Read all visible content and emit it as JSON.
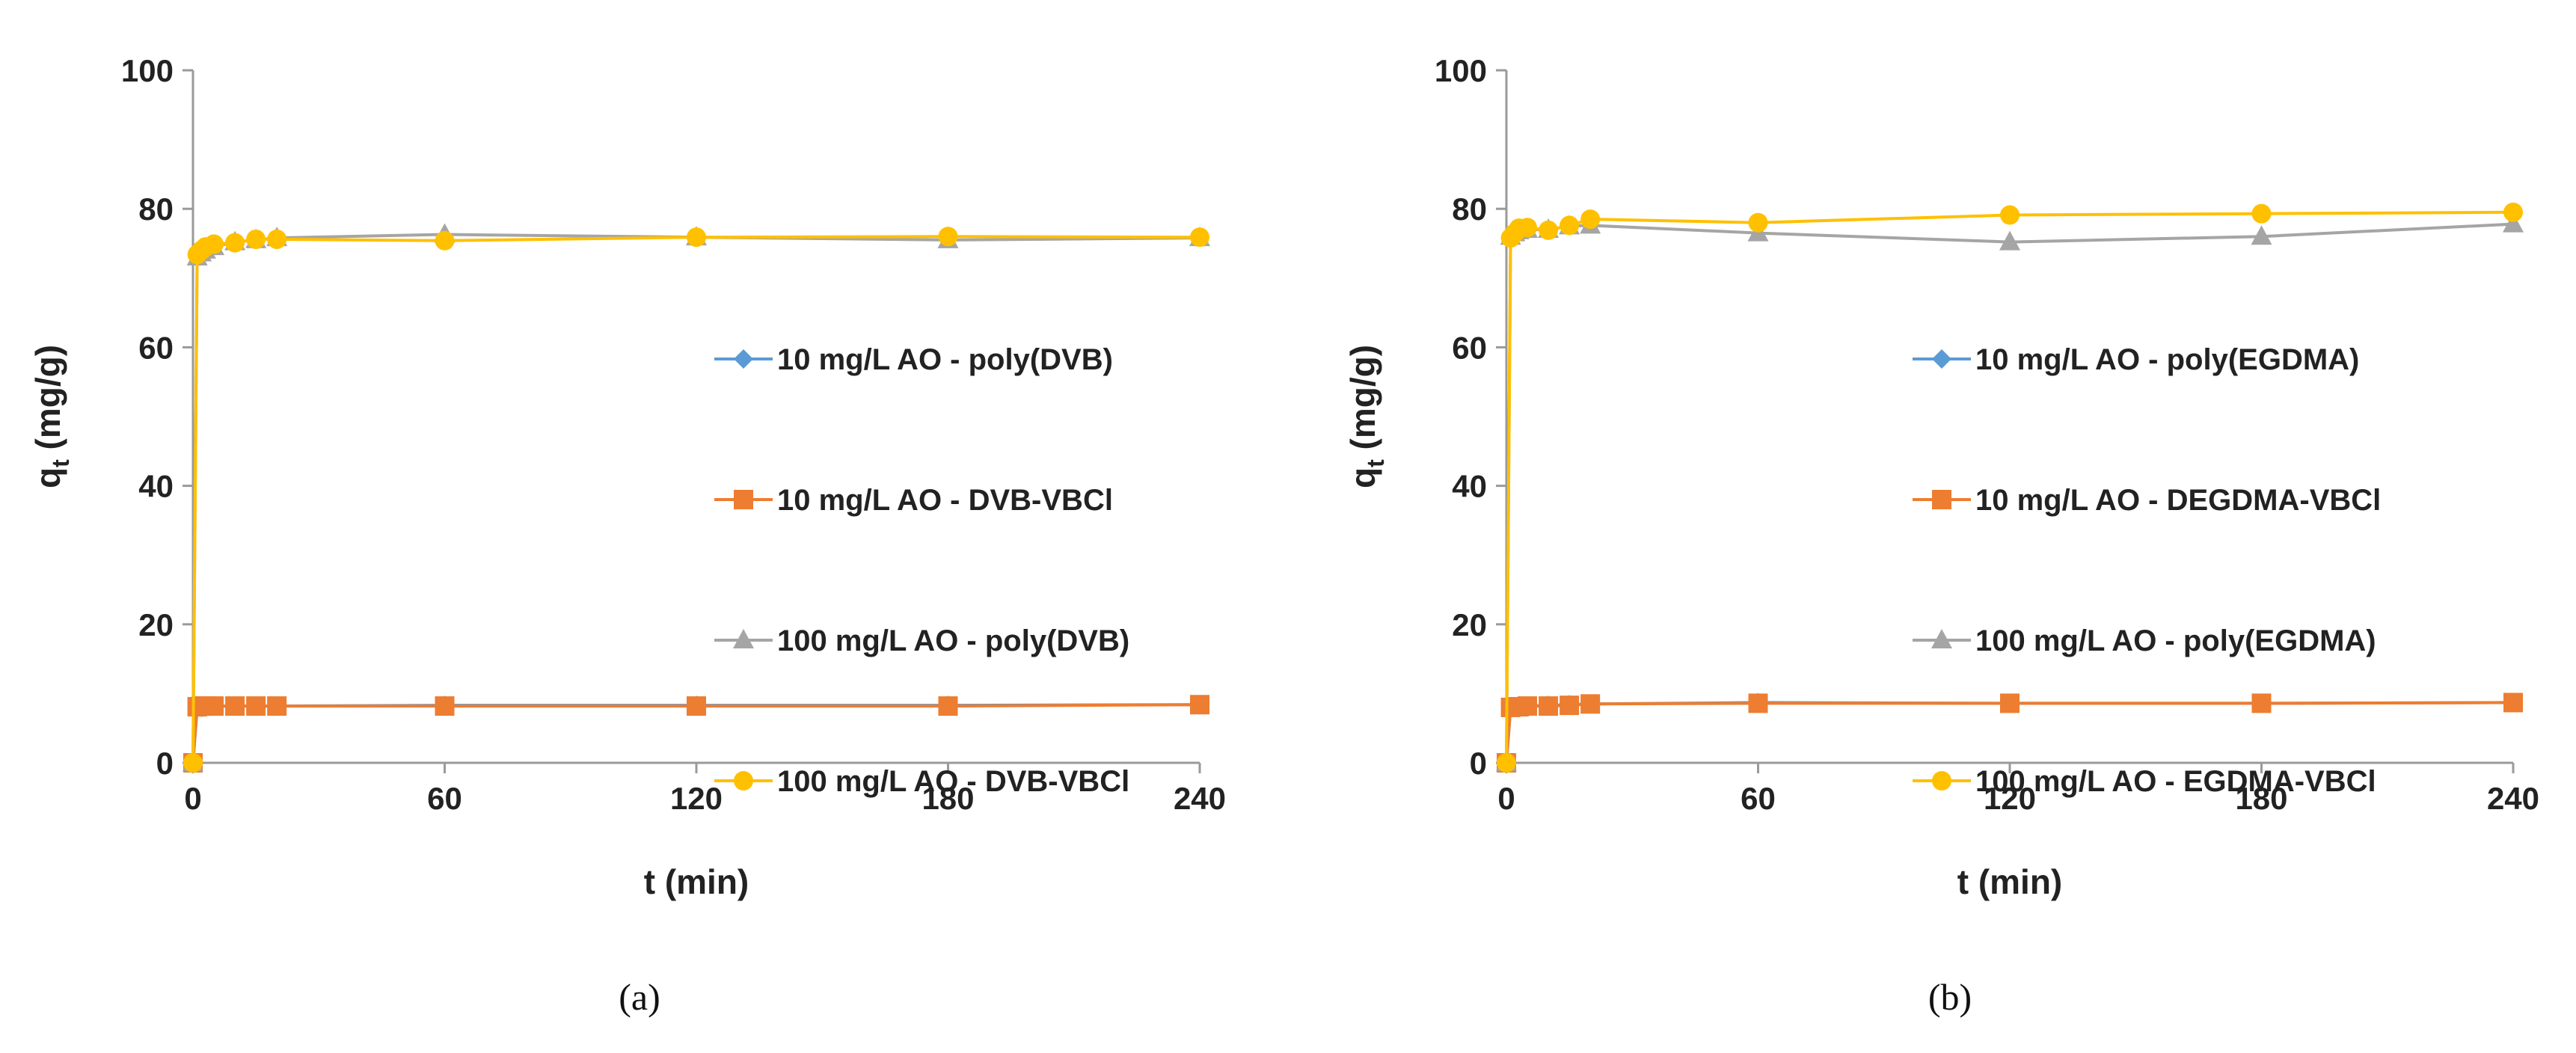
{
  "chart_data": [
    {
      "type": "line",
      "panel_label": "(a)",
      "xlabel": "t (min)",
      "ylabel_main": "q",
      "ylabel_sub": "t",
      "ylabel_unit": " (mg/g)",
      "xlim": [
        0,
        240
      ],
      "ylim": [
        0,
        100
      ],
      "xticks": [
        0,
        60,
        120,
        180,
        240
      ],
      "yticks": [
        0,
        20,
        40,
        60,
        80,
        100
      ],
      "grid": false,
      "legend_position": "center-right",
      "series": [
        {
          "name": "10 mg/L AO - poly(DVB)",
          "color": "#5b9bd5",
          "marker": "diamond",
          "x": [
            0,
            1,
            2,
            3,
            5,
            10,
            15,
            20,
            60,
            120,
            180,
            240
          ],
          "y": [
            0,
            7.9,
            8.0,
            8.1,
            8.2,
            8.2,
            8.2,
            8.2,
            8.3,
            8.3,
            8.3,
            8.4
          ]
        },
        {
          "name": "10 mg/L AO - DVB-VBCl",
          "color": "#ed7d31",
          "marker": "square",
          "x": [
            0,
            1,
            2,
            3,
            5,
            10,
            15,
            20,
            60,
            120,
            180,
            240
          ],
          "y": [
            0,
            8.1,
            8.2,
            8.2,
            8.2,
            8.2,
            8.2,
            8.2,
            8.2,
            8.2,
            8.2,
            8.4
          ]
        },
        {
          "name": "100 mg/L AO - poly(DVB)",
          "color": "#a5a5a5",
          "marker": "triangle",
          "x": [
            0,
            1,
            2,
            3,
            5,
            10,
            15,
            20,
            60,
            120,
            180,
            240
          ],
          "y": [
            0,
            73.0,
            73.6,
            74.0,
            74.5,
            75.2,
            75.5,
            75.8,
            76.3,
            75.9,
            75.5,
            75.8
          ]
        },
        {
          "name": "100 mg/L AO - DVB-VBCl",
          "color": "#ffc000",
          "marker": "circle",
          "x": [
            0,
            1,
            2,
            3,
            5,
            10,
            15,
            20,
            60,
            120,
            180,
            240
          ],
          "y": [
            0,
            73.4,
            74.0,
            74.5,
            74.9,
            75.1,
            75.6,
            75.6,
            75.4,
            75.9,
            76.0,
            75.9
          ]
        }
      ]
    },
    {
      "type": "line",
      "panel_label": "(b)",
      "xlabel": "t (min)",
      "ylabel_main": "q",
      "ylabel_sub": "t",
      "ylabel_unit": " (mg/g)",
      "xlim": [
        0,
        240
      ],
      "ylim": [
        0,
        100
      ],
      "xticks": [
        0,
        60,
        120,
        180,
        240
      ],
      "yticks": [
        0,
        20,
        40,
        60,
        80,
        100
      ],
      "grid": false,
      "legend_position": "center-right",
      "series": [
        {
          "name": "10 mg/L AO - poly(EGDMA)",
          "color": "#5b9bd5",
          "marker": "diamond",
          "x": [
            0,
            1,
            2,
            3,
            5,
            10,
            15,
            20,
            60,
            120,
            180,
            240
          ],
          "y": [
            0,
            8.0,
            8.1,
            8.2,
            8.2,
            8.3,
            8.4,
            8.5,
            8.7,
            8.6,
            8.6,
            8.7
          ]
        },
        {
          "name": "10 mg/L AO - DEGDMA-VBCl",
          "color": "#ed7d31",
          "marker": "square",
          "x": [
            0,
            1,
            2,
            3,
            5,
            10,
            15,
            20,
            60,
            120,
            180,
            240
          ],
          "y": [
            0,
            8.0,
            8.1,
            8.1,
            8.2,
            8.2,
            8.3,
            8.5,
            8.6,
            8.6,
            8.6,
            8.7
          ]
        },
        {
          "name": "100 mg/L AO - poly(EGDMA)",
          "color": "#a5a5a5",
          "marker": "triangle",
          "x": [
            0,
            1,
            2,
            3,
            5,
            10,
            15,
            20,
            60,
            120,
            180,
            240
          ],
          "y": [
            0,
            76.0,
            76.5,
            76.8,
            77.0,
            77.0,
            77.5,
            77.6,
            76.5,
            75.2,
            76.0,
            77.8
          ]
        },
        {
          "name": "100 mg/L AO - EGDMA-VBCl",
          "color": "#ffc000",
          "marker": "circle",
          "x": [
            0,
            1,
            2,
            3,
            5,
            10,
            15,
            20,
            60,
            120,
            180,
            240
          ],
          "y": [
            0,
            75.8,
            76.5,
            77.2,
            77.3,
            76.9,
            77.6,
            78.5,
            78.0,
            79.1,
            79.3,
            79.5
          ]
        }
      ]
    }
  ]
}
